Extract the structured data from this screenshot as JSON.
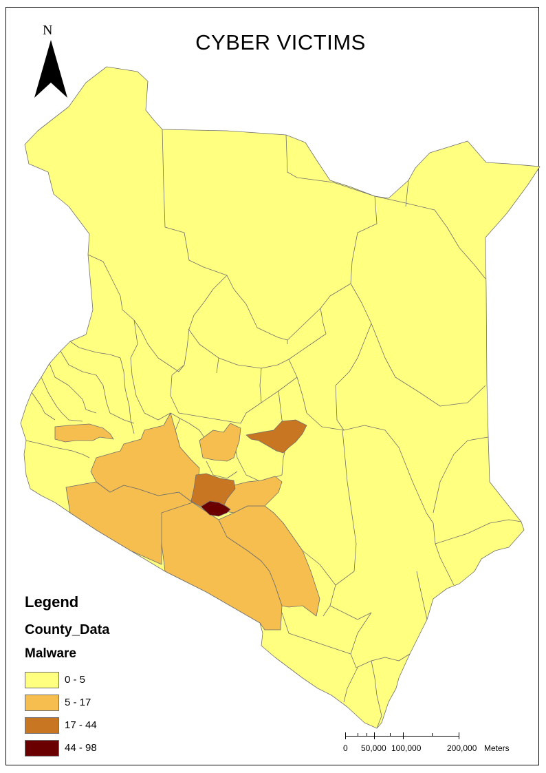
{
  "title": "CYBER VICTIMS",
  "north_arrow": {
    "label": "N",
    "icon": "north-arrow-icon"
  },
  "legend": {
    "title": "Legend",
    "layer": "County_Data",
    "field": "Malware",
    "classes": [
      {
        "label": "0 - 5",
        "color": "#ffff80"
      },
      {
        "label": "5 - 17",
        "color": "#f5be4f"
      },
      {
        "label": "17 - 44",
        "color": "#c87622"
      },
      {
        "label": "44 - 98",
        "color": "#6b0000"
      }
    ]
  },
  "scale_bar": {
    "labels": [
      "0",
      "50,000",
      "100,000",
      "200,000"
    ],
    "unit": "Meters"
  },
  "colors": {
    "boundary": "#6e6e6e",
    "class_0_5": "#ffff80",
    "class_5_17": "#f5be4f",
    "class_17_44": "#c87622",
    "class_44_98": "#6b0000"
  }
}
